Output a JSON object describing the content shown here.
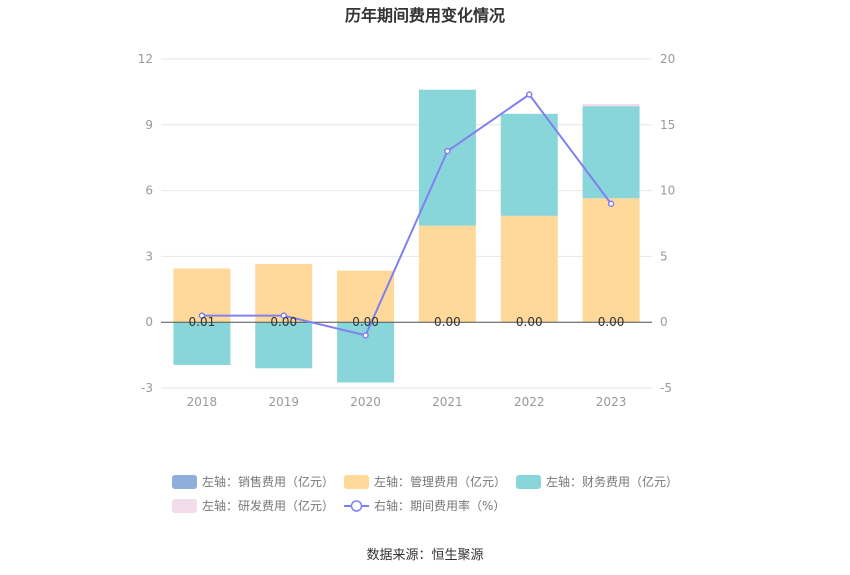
{
  "chart_data": {
    "type": "bar",
    "title": "历年期间费用变化情况",
    "categories": [
      "2018",
      "2019",
      "2020",
      "2021",
      "2022",
      "2023"
    ],
    "left_axis": {
      "ticks": [
        "12",
        "9",
        "6",
        "3",
        "0",
        "-3"
      ],
      "ylim": [
        -3,
        12
      ]
    },
    "right_axis": {
      "ticks": [
        "20",
        "15",
        "10",
        "5",
        "0",
        "-5"
      ],
      "ylim": [
        -5,
        20
      ]
    },
    "series": [
      {
        "name": "左轴：销售费用（亿元）",
        "axis": "left",
        "color": "#8eaedc",
        "values": [
          0,
          0,
          0,
          0,
          0,
          0
        ]
      },
      {
        "name": "左轴：管理费用（亿元）",
        "axis": "left",
        "color": "#ffd99a",
        "values": [
          2.45,
          2.65,
          2.35,
          4.4,
          4.85,
          5.65
        ]
      },
      {
        "name": "左轴：财务费用（亿元）",
        "axis": "left",
        "color": "#88d6da",
        "values": [
          -1.95,
          -2.1,
          -2.75,
          6.2,
          4.65,
          4.2
        ]
      },
      {
        "name": "左轴：研发费用（亿元）",
        "axis": "left",
        "color": "#f1dcec",
        "values": [
          0,
          0,
          0,
          0,
          0,
          0.1
        ]
      },
      {
        "name": "右轴：期间费用率（%）",
        "axis": "right",
        "type": "line",
        "color": "#8080f0",
        "values": [
          0.5,
          0.5,
          -1.0,
          13.0,
          17.3,
          9.0
        ]
      }
    ],
    "data_labels": [
      "0.01",
      "0.00",
      "0.00",
      "0.00",
      "0.00",
      "0.00"
    ],
    "legend_position": "bottom"
  },
  "source_note": "数据来源：恒生聚源"
}
